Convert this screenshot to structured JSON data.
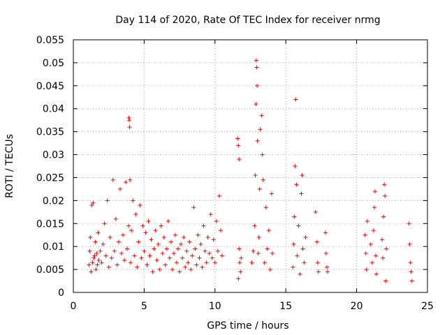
{
  "chart_data": {
    "type": "scatter",
    "title": "Day 114 of 2020, Rate Of TEC Index for receiver nrmg",
    "xlabel": "GPS time / hours",
    "ylabel": "ROTI / TECUs",
    "xlim": [
      0,
      25
    ],
    "ylim": [
      0,
      0.055
    ],
    "grid": true,
    "marker": "+",
    "color": "#ff0000",
    "xticks": [
      0,
      5,
      10,
      15,
      20,
      25
    ],
    "xtick_labels": [
      "0",
      "5",
      "10",
      "15",
      "20",
      "25"
    ],
    "yticks": [
      0,
      0.005,
      0.01,
      0.015,
      0.02,
      0.025,
      0.03,
      0.035,
      0.04,
      0.045,
      0.05,
      0.055
    ],
    "ytick_labels": [
      "0",
      "0.005",
      "0.01",
      "0.015",
      "0.02",
      "0.025",
      "0.03",
      "0.035",
      "0.04",
      "0.045",
      "0.05",
      "0.055"
    ],
    "series": [
      {
        "name": "ROTI",
        "points": [
          [
            1.1,
            0.006
          ],
          [
            1.15,
            0.009
          ],
          [
            1.2,
            0.012
          ],
          [
            1.25,
            0.0045
          ],
          [
            1.3,
            0.019
          ],
          [
            1.35,
            0.0065
          ],
          [
            1.4,
            0.0195
          ],
          [
            1.45,
            0.0075
          ],
          [
            1.5,
            0.008
          ],
          [
            1.55,
            0.011
          ],
          [
            1.6,
            0.005
          ],
          [
            1.65,
            0.0085
          ],
          [
            1.7,
            0.006
          ],
          [
            1.75,
            0.013
          ],
          [
            1.8,
            0.007
          ],
          [
            1.9,
            0.009
          ],
          [
            2.0,
            0.0065
          ],
          [
            2.1,
            0.0105
          ],
          [
            2.2,
            0.015
          ],
          [
            2.3,
            0.008
          ],
          [
            2.4,
            0.02
          ],
          [
            2.5,
            0.0055
          ],
          [
            2.6,
            0.012
          ],
          [
            2.7,
            0.0075
          ],
          [
            2.8,
            0.0245
          ],
          [
            2.9,
            0.009
          ],
          [
            3.0,
            0.016
          ],
          [
            3.1,
            0.006
          ],
          [
            3.2,
            0.011
          ],
          [
            3.3,
            0.0225
          ],
          [
            3.4,
            0.0085
          ],
          [
            3.5,
            0.0125
          ],
          [
            3.6,
            0.007
          ],
          [
            3.7,
            0.024
          ],
          [
            3.8,
            0.0095
          ],
          [
            3.9,
            0.0145
          ],
          [
            3.92,
            0.038
          ],
          [
            3.95,
            0.0375
          ],
          [
            3.97,
            0.036
          ],
          [
            4.0,
            0.0245
          ],
          [
            4.05,
            0.0065
          ],
          [
            4.1,
            0.0135
          ],
          [
            4.2,
            0.02
          ],
          [
            4.3,
            0.008
          ],
          [
            4.4,
            0.017
          ],
          [
            4.5,
            0.0055
          ],
          [
            4.6,
            0.011
          ],
          [
            4.7,
            0.019
          ],
          [
            4.8,
            0.0075
          ],
          [
            4.9,
            0.0145
          ],
          [
            5.0,
            0.009
          ],
          [
            5.1,
            0.013
          ],
          [
            5.2,
            0.006
          ],
          [
            5.3,
            0.0155
          ],
          [
            5.4,
            0.008
          ],
          [
            5.5,
            0.0115
          ],
          [
            5.6,
            0.0045
          ],
          [
            5.7,
            0.0095
          ],
          [
            5.8,
            0.0135
          ],
          [
            5.9,
            0.007
          ],
          [
            6.0,
            0.0105
          ],
          [
            6.1,
            0.005
          ],
          [
            6.2,
            0.0145
          ],
          [
            6.3,
            0.0085
          ],
          [
            6.4,
            0.012
          ],
          [
            6.5,
            0.006
          ],
          [
            6.6,
            0.0095
          ],
          [
            6.7,
            0.0155
          ],
          [
            6.8,
            0.0075
          ],
          [
            6.9,
            0.011
          ],
          [
            7.0,
            0.005
          ],
          [
            7.1,
            0.0085
          ],
          [
            7.2,
            0.0125
          ],
          [
            7.3,
            0.0065
          ],
          [
            7.4,
            0.0095
          ],
          [
            7.5,
            0.0045
          ],
          [
            7.6,
            0.0105
          ],
          [
            7.7,
            0.0075
          ],
          [
            7.8,
            0.012
          ],
          [
            7.9,
            0.0055
          ],
          [
            8.0,
            0.009
          ],
          [
            8.1,
            0.0065
          ],
          [
            8.2,
            0.011
          ],
          [
            8.3,
            0.005
          ],
          [
            8.4,
            0.008
          ],
          [
            8.5,
            0.0185
          ],
          [
            8.6,
            0.0095
          ],
          [
            8.7,
            0.006
          ],
          [
            8.8,
            0.0125
          ],
          [
            8.9,
            0.0075
          ],
          [
            9.0,
            0.0105
          ],
          [
            9.1,
            0.0055
          ],
          [
            9.2,
            0.0145
          ],
          [
            9.3,
            0.009
          ],
          [
            9.4,
            0.0065
          ],
          [
            9.5,
            0.012
          ],
          [
            9.6,
            0.0085
          ],
          [
            9.7,
            0.017
          ],
          [
            9.8,
            0.0075
          ],
          [
            9.9,
            0.0115
          ],
          [
            10.0,
            0.0065
          ],
          [
            10.1,
            0.0155
          ],
          [
            10.2,
            0.009
          ],
          [
            10.3,
            0.021
          ],
          [
            10.4,
            0.0135
          ],
          [
            10.5,
            0.008
          ],
          [
            11.6,
            0.0335
          ],
          [
            11.65,
            0.032
          ],
          [
            11.7,
            0.029
          ],
          [
            11.7,
            0.0095
          ],
          [
            11.75,
            0.0065
          ],
          [
            11.8,
            0.0045
          ],
          [
            11.85,
            0.0075
          ],
          [
            11.65,
            0.003
          ],
          [
            12.6,
            0.0065
          ],
          [
            12.7,
            0.009
          ],
          [
            12.8,
            0.0145
          ],
          [
            12.85,
            0.0255
          ],
          [
            12.9,
            0.041
          ],
          [
            12.92,
            0.0505
          ],
          [
            12.95,
            0.049
          ],
          [
            12.97,
            0.045
          ],
          [
            13.0,
            0.033
          ],
          [
            13.05,
            0.0085
          ],
          [
            13.1,
            0.012
          ],
          [
            13.15,
            0.0225
          ],
          [
            13.2,
            0.0355
          ],
          [
            13.3,
            0.0385
          ],
          [
            13.35,
            0.03
          ],
          [
            13.4,
            0.0245
          ],
          [
            13.5,
            0.0065
          ],
          [
            13.6,
            0.0185
          ],
          [
            13.7,
            0.0095
          ],
          [
            13.8,
            0.0135
          ],
          [
            13.9,
            0.005
          ],
          [
            14.0,
            0.0215
          ],
          [
            14.05,
            0.0085
          ],
          [
            15.5,
            0.0055
          ],
          [
            15.55,
            0.0105
          ],
          [
            15.6,
            0.0165
          ],
          [
            15.65,
            0.0275
          ],
          [
            15.7,
            0.042
          ],
          [
            15.75,
            0.0235
          ],
          [
            15.8,
            0.008
          ],
          [
            15.9,
            0.0145
          ],
          [
            16.0,
            0.004
          ],
          [
            16.1,
            0.0215
          ],
          [
            16.15,
            0.0255
          ],
          [
            16.2,
            0.0095
          ],
          [
            16.3,
            0.0065
          ],
          [
            16.4,
            0.012
          ],
          [
            17.1,
            0.0175
          ],
          [
            17.2,
            0.011
          ],
          [
            17.25,
            0.0065
          ],
          [
            17.3,
            0.0045
          ],
          [
            17.8,
            0.013
          ],
          [
            17.85,
            0.0085
          ],
          [
            17.9,
            0.0055
          ],
          [
            17.95,
            0.0045
          ],
          [
            20.6,
            0.0125
          ],
          [
            20.65,
            0.0085
          ],
          [
            20.7,
            0.005
          ],
          [
            20.75,
            0.0155
          ],
          [
            21.0,
            0.0105
          ],
          [
            21.1,
            0.0065
          ],
          [
            21.2,
            0.0135
          ],
          [
            21.25,
            0.0185
          ],
          [
            21.3,
            0.022
          ],
          [
            21.35,
            0.008
          ],
          [
            21.4,
            0.004
          ],
          [
            21.8,
            0.0115
          ],
          [
            21.85,
            0.0075
          ],
          [
            21.9,
            0.0165
          ],
          [
            21.95,
            0.0235
          ],
          [
            22.0,
            0.021
          ],
          [
            22.05,
            0.0025
          ],
          [
            22.1,
            0.0095
          ],
          [
            23.7,
            0.015
          ],
          [
            23.75,
            0.0105
          ],
          [
            23.8,
            0.0065
          ],
          [
            23.85,
            0.0045
          ],
          [
            23.9,
            0.0025
          ]
        ]
      }
    ]
  }
}
